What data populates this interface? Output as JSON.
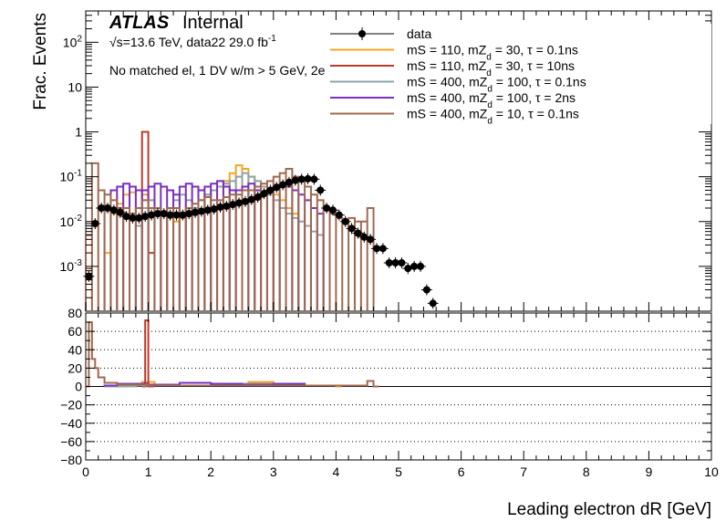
{
  "header": {
    "atlas": "ATLAS",
    "internal": "Internal",
    "energy": "√s=13.6 TeV, data22 29.0 fb",
    "lumi_sup": "-1",
    "selection": "No matched el, 1 DV w/m > 5 GeV, 2e"
  },
  "colors": {
    "data": "#000000",
    "s1": "#f5a623",
    "s2": "#c0392b",
    "s3": "#8fa3a8",
    "s4": "#7b2fbf",
    "s5": "#a0694f"
  },
  "chart_data": [
    {
      "type": "line",
      "panel": "main",
      "ylabel": "Frac. Events",
      "xlim": [
        0,
        10
      ],
      "ylim": [
        0.0001,
        500
      ],
      "yscale": "log",
      "y_ticks": [
        "10^{-3}",
        "10^{-2}",
        "10^{-1}",
        "1",
        "10",
        "10^{2}"
      ],
      "legend": {
        "placement": "top-right",
        "entries": [
          {
            "main": "data",
            "sub": ""
          },
          {
            "main": "mS = 110, mZ",
            "sub": "d",
            "rest": " = 30, τ = 0.1ns"
          },
          {
            "main": "mS = 110, mZ",
            "sub": "d",
            "rest": " = 30, τ = 10ns"
          },
          {
            "main": "mS = 400, mZ",
            "sub": "d",
            "rest": " = 100, τ = 0.1ns"
          },
          {
            "main": "mS = 400, mZ",
            "sub": "d",
            "rest": " = 100, τ = 2ns"
          },
          {
            "main": "mS = 400, mZ",
            "sub": "d",
            "rest": " = 10, τ = 0.1ns"
          }
        ]
      },
      "data_points": {
        "x": [
          0.05,
          0.15,
          0.25,
          0.35,
          0.45,
          0.55,
          0.65,
          0.75,
          0.85,
          0.95,
          1.05,
          1.15,
          1.25,
          1.35,
          1.45,
          1.55,
          1.65,
          1.75,
          1.85,
          1.95,
          2.05,
          2.15,
          2.25,
          2.35,
          2.45,
          2.55,
          2.65,
          2.75,
          2.85,
          2.95,
          3.05,
          3.15,
          3.25,
          3.35,
          3.45,
          3.55,
          3.65,
          3.75,
          3.85,
          3.95,
          4.05,
          4.15,
          4.25,
          4.35,
          4.45,
          4.55,
          4.65,
          4.75,
          4.85,
          4.95,
          5.05,
          5.15,
          5.25,
          5.35,
          5.45,
          5.55
        ],
        "y": [
          0.0006,
          0.009,
          0.02,
          0.02,
          0.018,
          0.016,
          0.013,
          0.012,
          0.012,
          0.013,
          0.014,
          0.015,
          0.015,
          0.014,
          0.014,
          0.014,
          0.015,
          0.016,
          0.017,
          0.018,
          0.019,
          0.021,
          0.022,
          0.024,
          0.026,
          0.028,
          0.031,
          0.035,
          0.042,
          0.05,
          0.058,
          0.066,
          0.075,
          0.083,
          0.088,
          0.09,
          0.088,
          0.05,
          0.02,
          0.018,
          0.014,
          0.01,
          0.007,
          0.0055,
          0.0045,
          0.004,
          0.0025,
          0.0025,
          0.0012,
          0.0012,
          0.0012,
          0.0009,
          0.001,
          0.001,
          0.0003,
          0.00015
        ]
      },
      "series": [
        {
          "key": "s1",
          "bin_width": 0.1,
          "x0": 0.3,
          "values": [
            0.002,
            0.015,
            0.025,
            0.04,
            0.045,
            0.05,
            0.04,
            0.03,
            0.02,
            0.015,
            0.012,
            0.01,
            0.012,
            0.015,
            0.02,
            0.03,
            0.04,
            0.05,
            0.06,
            0.08,
            0.12,
            0.18,
            0.15,
            0.1,
            0.08,
            0.06,
            0.05,
            0.04,
            0.03,
            0.02,
            0.015
          ]
        },
        {
          "key": "s2",
          "bin_width": 0.1,
          "x0": 0.9,
          "values": [
            1.0,
            0.002
          ]
        },
        {
          "key": "s3",
          "bin_width": 0.1,
          "x0": 0.3,
          "values": [
            0.0,
            0.0,
            0.0,
            0.0,
            0.0,
            0.008,
            0.02,
            0.03,
            0.02,
            0.015,
            0.02,
            0.03,
            0.04,
            0.03,
            0.02,
            0.03,
            0.04,
            0.05,
            0.06,
            0.07,
            0.08,
            0.1,
            0.12,
            0.1,
            0.08,
            0.06,
            0.04,
            0.03,
            0.02,
            0.015,
            0.012,
            0.01,
            0.008,
            0.006,
            0.005
          ]
        },
        {
          "key": "s4",
          "bin_width": 0.1,
          "x0": 0.3,
          "values": [
            0.02,
            0.05,
            0.06,
            0.07,
            0.06,
            0.05,
            0.05,
            0.06,
            0.07,
            0.06,
            0.05,
            0.04,
            0.06,
            0.07,
            0.06,
            0.05,
            0.06,
            0.07,
            0.08,
            0.06,
            0.05,
            0.05,
            0.06,
            0.07,
            0.05,
            0.04,
            0.05,
            0.06,
            0.07,
            0.06,
            0.05,
            0.04,
            0.03,
            0.02,
            0.015
          ]
        },
        {
          "key": "s5",
          "bin_width": 0.1,
          "x0": 0.0,
          "values": [
            0.005,
            0.2,
            0.05,
            0.04,
            0.03,
            0.02,
            0.02,
            0.015,
            0.02,
            0.03,
            0.02,
            0.02,
            0.015,
            0.02,
            0.02,
            0.015,
            0.02,
            0.025,
            0.03,
            0.035,
            0.03,
            0.03,
            0.035,
            0.04,
            0.04,
            0.05,
            0.05,
            0.06,
            0.07,
            0.08,
            0.1,
            0.12,
            0.15,
            0.1,
            0.08,
            0.06,
            0.04,
            0.03,
            0.02,
            0.015,
            0.012,
            0.01,
            0.012,
            0.01,
            0.01,
            0.02
          ]
        }
      ]
    },
    {
      "type": "line",
      "panel": "ratio",
      "xlabel": "Leading electron dR [GeV]",
      "xlim": [
        0,
        10
      ],
      "ylim": [
        -80,
        80
      ],
      "x_ticks": [
        "0",
        "1",
        "2",
        "3",
        "4",
        "5",
        "6",
        "7",
        "8",
        "9",
        "10"
      ],
      "y_ticks": [
        "−80",
        "−60",
        "−40",
        "−20",
        "0",
        "20",
        "40",
        "60",
        "80"
      ],
      "grid": true,
      "series": [
        {
          "key": "s1",
          "x": [
            0.3,
            0.5,
            0.7,
            0.9,
            1.1,
            1.5,
            2.0,
            2.5,
            2.6,
            3.0,
            3.5,
            4.0
          ],
          "y": [
            1,
            2,
            3,
            5,
            2,
            1,
            1,
            3,
            5,
            2,
            1,
            0
          ]
        },
        {
          "key": "s2",
          "x": [
            0.9,
            0.95,
            1.0
          ],
          "y": [
            0,
            72,
            0
          ]
        },
        {
          "key": "s3",
          "x": [
            0.3,
            0.8,
            1.5,
            2.0,
            2.5,
            3.0,
            3.5
          ],
          "y": [
            0,
            1,
            1,
            2,
            3,
            3,
            1
          ]
        },
        {
          "key": "s4",
          "x": [
            0.3,
            0.5,
            1.0,
            1.5,
            2.0,
            2.5,
            3.0,
            3.5
          ],
          "y": [
            1,
            3,
            2,
            4,
            3,
            2,
            3,
            1
          ]
        },
        {
          "key": "s5",
          "x": [
            0.0,
            0.05,
            0.1,
            0.15,
            0.2,
            0.3,
            0.5,
            1.0,
            2.0,
            3.0,
            4.0,
            4.4,
            4.5,
            4.6
          ],
          "y": [
            0,
            70,
            30,
            20,
            10,
            4,
            2,
            1,
            1,
            1,
            1,
            1,
            6,
            0
          ]
        }
      ]
    }
  ]
}
